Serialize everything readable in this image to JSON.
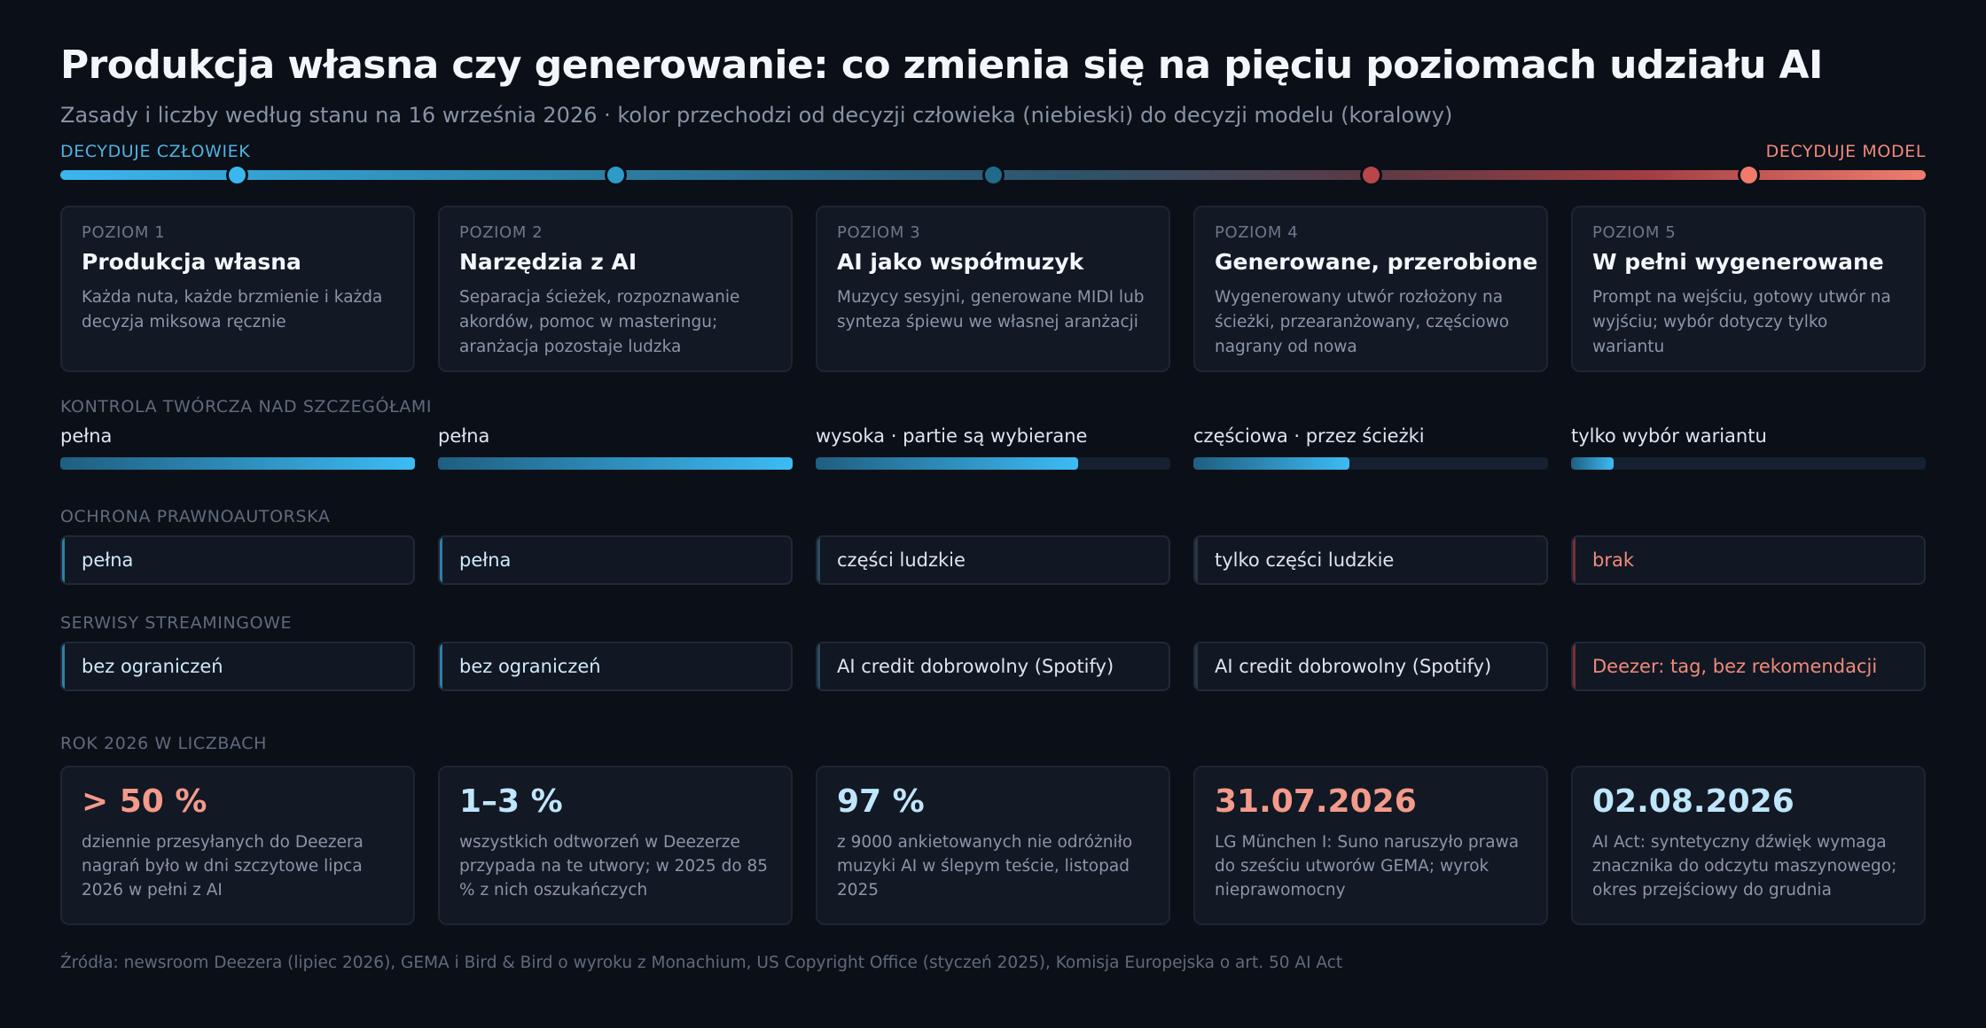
{
  "header": {
    "title": "Produkcja własna czy generowanie: co zmienia się na pięciu poziomach udziału AI",
    "subtitle": "Zasady i liczby według stanu na 16 września 2026 · kolor przechodzi od decyzji człowieka (niebieski) do decyzji modelu (koralowy)"
  },
  "scale": {
    "left_label": "DECYDUJE CZŁOWIEK",
    "right_label": "DECYDUJE MODEL",
    "colors": [
      "#3bb6ef",
      "#2e9ac7",
      "#226a8a",
      "#b8464b",
      "#f07a6c"
    ]
  },
  "levels": [
    {
      "level": "POZIOM 1",
      "name": "Produkcja własna",
      "desc": "Każda nuta, każde brzmienie i każda decyzja miksowa ręcznie"
    },
    {
      "level": "POZIOM 2",
      "name": "Narzędzia z AI",
      "desc": "Separacja ścieżek, rozpoznawanie akordów, pomoc w masteringu; aranżacja pozostaje ludzka"
    },
    {
      "level": "POZIOM 3",
      "name": "AI jako współmuzyk",
      "desc": "Muzycy sesyjni, generowane MIDI lub synteza śpiewu we własnej aranżacji"
    },
    {
      "level": "POZIOM 4",
      "name": "Generowane, przerobione",
      "desc": "Wygenerowany utwór rozłożony na ścieżki, przearanżowany, częściowo nagrany od nowa"
    },
    {
      "level": "POZIOM 5",
      "name": "W pełni wygenerowane",
      "desc": "Prompt na wejściu, gotowy utwór na wyjściu; wybór dotyczy tylko wariantu"
    }
  ],
  "control": {
    "label": "KONTROLA TWÓRCZA NAD SZCZEGÓŁAMI",
    "items": [
      {
        "label": "pełna",
        "fill": 1.0
      },
      {
        "label": "pełna",
        "fill": 1.0
      },
      {
        "label": "wysoka · partie są wybierane",
        "fill": 0.74
      },
      {
        "label": "częściowa · przez ścieżki",
        "fill": 0.44
      },
      {
        "label": "tylko wybór wariantu",
        "fill": 0.12
      }
    ]
  },
  "copyright": {
    "label": "OCHRONA PRAWNOAUTORSKA",
    "items": [
      {
        "label": "pełna",
        "color": "#cfe9f8",
        "accent": "#2f7fa6"
      },
      {
        "label": "pełna",
        "color": "#cfe9f8",
        "accent": "#2f7fa6"
      },
      {
        "label": "części ludzkie",
        "color": "#dfe5ee",
        "accent": "#2a4a5e"
      },
      {
        "label": "tylko części ludzkie",
        "color": "#dfe5ee",
        "accent": "#2b3442"
      },
      {
        "label": "brak",
        "color": "#ef8a7b",
        "accent": "#7a2f36"
      }
    ]
  },
  "streaming": {
    "label": "SERWISY STREAMINGOWE",
    "items": [
      {
        "label": "bez ograniczeń",
        "color": "#cfe9f8",
        "accent": "#2f7fa6"
      },
      {
        "label": "bez ograniczeń",
        "color": "#cfe9f8",
        "accent": "#2f7fa6"
      },
      {
        "label": "AI credit dobrowolny (Spotify)",
        "color": "#dfe5ee",
        "accent": "#2a4a5e"
      },
      {
        "label": "AI credit dobrowolny (Spotify)",
        "color": "#dfe5ee",
        "accent": "#2b3442"
      },
      {
        "label": "Deezer: tag, bez rekomendacji",
        "color": "#ef8a7b",
        "accent": "#7a2f36"
      }
    ]
  },
  "stats": {
    "label": "ROK 2026 W LICZBACH",
    "items": [
      {
        "value": "> 50 %",
        "color": "#f39a8a",
        "text": "dziennie przesyłanych do Deezera nagrań było w dni szczytowe lipca 2026 w pełni z AI"
      },
      {
        "value": "1–3 %",
        "color": "#bfe6fb",
        "text": "wszystkich odtworzeń w Deezerze przypada na te utwory; w 2025 do 85 % z nich oszukańczych"
      },
      {
        "value": "97 %",
        "color": "#bfe6fb",
        "text": "z 9000 ankietowanych nie odróżniło muzyki AI w ślepym teście, listopad 2025"
      },
      {
        "value": "31.07.2026",
        "color": "#f39a8a",
        "text": "LG München I: Suno naruszyło prawa do sześciu utworów GEMA; wyrok nieprawomocny"
      },
      {
        "value": "02.08.2026",
        "color": "#bfe6fb",
        "text": "AI Act: syntetyczny dźwięk wymaga znacznika do odczytu maszynowego; okres przejściowy do grudnia"
      }
    ]
  },
  "sources": "Źródła: newsroom Deezera (lipiec 2026), GEMA i Bird & Bird o wyroku z Monachium, US Copyright Office (styczeń 2025), Komisja Europejska o art. 50 AI Act"
}
